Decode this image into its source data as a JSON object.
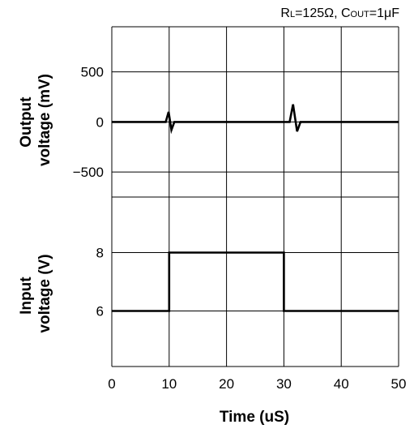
{
  "chart_data": {
    "type": "line",
    "annotation": {
      "rl_main": "R",
      "rl_sub": "L",
      "rl_value": "=125Ω, ",
      "cout_main": "C",
      "cout_sub": "OUT",
      "cout_value": "=1μF"
    },
    "xlabel": "Time (uS)",
    "xlim": [
      0,
      50
    ],
    "xticks": [
      "0",
      "10",
      "20",
      "30",
      "40",
      "50"
    ],
    "grid": true,
    "panels": [
      {
        "ylabel": [
          "Output",
          "voltage (mV)"
        ],
        "ylim": [
          -750,
          950
        ],
        "yticks": [
          {
            "value": 500,
            "label": "500"
          },
          {
            "value": 0,
            "label": "0"
          },
          {
            "value": -500,
            "label": "−500"
          }
        ],
        "series": [
          {
            "x": [
              0,
              9.4,
              9.9,
              10.4,
              10.9,
              30,
              31.0,
              31.6,
              32.3,
              32.9,
              50
            ],
            "y": [
              0,
              0,
              100,
              -80,
              0,
              0,
              0,
              175,
              -95,
              0,
              0
            ]
          }
        ]
      },
      {
        "ylabel": [
          "Input",
          "voltage (V)"
        ],
        "ylim": [
          4.1,
          9.9
        ],
        "yticks": [
          {
            "value": 8,
            "label": "8"
          },
          {
            "value": 6,
            "label": "6"
          }
        ],
        "series": [
          {
            "x": [
              0,
              10,
              10,
              30,
              30,
              50
            ],
            "y": [
              6,
              6,
              8,
              8,
              6,
              6
            ]
          }
        ]
      }
    ]
  }
}
